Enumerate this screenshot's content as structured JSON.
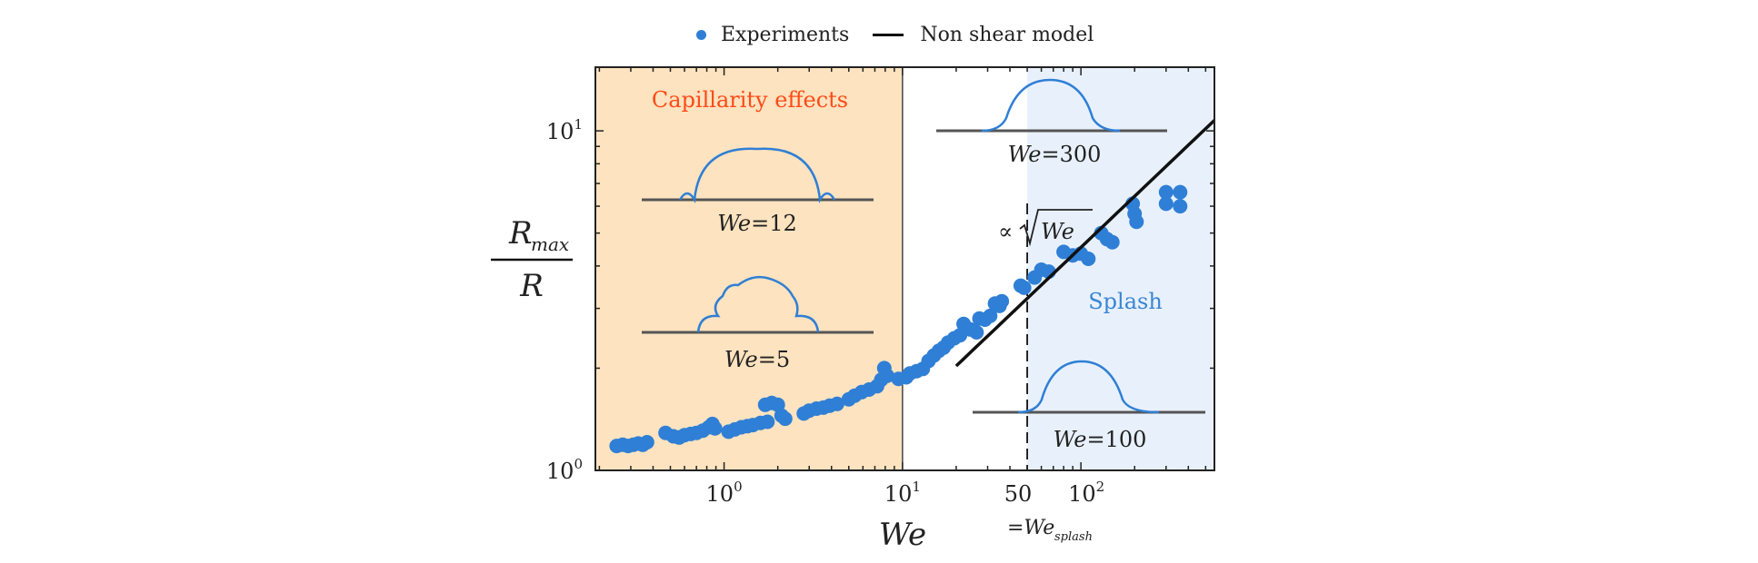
{
  "chart_data": {
    "type": "scatter",
    "title": "",
    "xlabel": "We",
    "ylabel": {
      "numerator": "R",
      "numerator_sub": "max",
      "denominator": "R"
    },
    "xscale": "log",
    "yscale": "log",
    "xlim": [
      0.19,
      560
    ],
    "ylim": [
      1.0,
      15.4
    ],
    "grid": false,
    "legend": {
      "placement": "top-center-outside",
      "entries": [
        {
          "label": "Experiments",
          "marker": "dot",
          "color": "#2f7fd6"
        },
        {
          "label": "Non shear model",
          "marker": "line",
          "color": "#111111"
        }
      ]
    },
    "x_ticks": [
      {
        "value": 1,
        "base": "10",
        "exp": "0"
      },
      {
        "value": 10,
        "base": "10",
        "exp": "1"
      },
      {
        "value": 50,
        "base": "50",
        "exp": ""
      },
      {
        "value": 100,
        "base": "10",
        "exp": "2"
      }
    ],
    "y_ticks": [
      {
        "value": 1,
        "base": "10",
        "exp": "0"
      },
      {
        "value": 10,
        "base": "10",
        "exp": "1"
      }
    ],
    "splash_threshold_label": {
      "text": "=We",
      "sub": "splash"
    },
    "regions": [
      {
        "name": "Capillarity effects",
        "from": 0.19,
        "to": 10,
        "fill": "#fde3bf",
        "label_color": "#ff4a1a"
      },
      {
        "name": "Splash",
        "from": 50,
        "to": 560,
        "fill": "#e8f1fb",
        "label_color": "#3a86d4"
      }
    ],
    "annotations": {
      "proportional": {
        "prefix": "∝",
        "radicand": "We"
      },
      "drop_shapes": [
        {
          "label_var": "We",
          "label_value": "=12",
          "kind": "capillary-ridges"
        },
        {
          "label_var": "We",
          "label_value": "=5",
          "kind": "capillary-ripples"
        },
        {
          "label_var": "We",
          "label_value": "=300",
          "kind": "smooth"
        },
        {
          "label_var": "We",
          "label_value": "=100",
          "kind": "smooth"
        }
      ]
    },
    "series": [
      {
        "name": "Experiments",
        "type": "scatter",
        "color": "#2f7fd6",
        "points": [
          [
            0.25,
            1.18
          ],
          [
            0.27,
            1.19
          ],
          [
            0.29,
            1.18
          ],
          [
            0.31,
            1.19
          ],
          [
            0.33,
            1.2
          ],
          [
            0.35,
            1.19
          ],
          [
            0.37,
            1.21
          ],
          [
            0.47,
            1.29
          ],
          [
            0.52,
            1.26
          ],
          [
            0.56,
            1.25
          ],
          [
            0.6,
            1.27
          ],
          [
            0.65,
            1.28
          ],
          [
            0.7,
            1.29
          ],
          [
            0.76,
            1.31
          ],
          [
            0.82,
            1.34
          ],
          [
            0.86,
            1.37
          ],
          [
            0.89,
            1.33
          ],
          [
            1.06,
            1.3
          ],
          [
            1.15,
            1.32
          ],
          [
            1.25,
            1.34
          ],
          [
            1.35,
            1.35
          ],
          [
            1.45,
            1.36
          ],
          [
            1.6,
            1.38
          ],
          [
            1.75,
            1.39
          ],
          [
            1.7,
            1.56
          ],
          [
            1.85,
            1.58
          ],
          [
            2.0,
            1.56
          ],
          [
            2.1,
            1.45
          ],
          [
            2.2,
            1.42
          ],
          [
            2.8,
            1.47
          ],
          [
            3.0,
            1.5
          ],
          [
            3.3,
            1.52
          ],
          [
            3.6,
            1.53
          ],
          [
            3.9,
            1.55
          ],
          [
            4.3,
            1.57
          ],
          [
            5.0,
            1.62
          ],
          [
            5.4,
            1.66
          ],
          [
            5.9,
            1.7
          ],
          [
            6.5,
            1.73
          ],
          [
            7.2,
            1.77
          ],
          [
            7.6,
            1.85
          ],
          [
            7.9,
            2.0
          ],
          [
            8.2,
            1.9
          ],
          [
            9.5,
            1.86
          ],
          [
            10.5,
            1.88
          ],
          [
            11,
            1.93
          ],
          [
            12,
            1.96
          ],
          [
            13,
            1.99
          ],
          [
            14,
            2.1
          ],
          [
            15,
            2.18
          ],
          [
            16,
            2.25
          ],
          [
            17,
            2.3
          ],
          [
            18,
            2.38
          ],
          [
            19.5,
            2.45
          ],
          [
            21,
            2.5
          ],
          [
            22,
            2.7
          ],
          [
            24,
            2.6
          ],
          [
            26,
            2.55
          ],
          [
            27,
            2.8
          ],
          [
            29,
            2.78
          ],
          [
            31,
            2.85
          ],
          [
            33,
            3.1
          ],
          [
            35,
            3.05
          ],
          [
            36,
            3.15
          ],
          [
            46,
            3.5
          ],
          [
            48,
            3.45
          ],
          [
            55,
            3.7
          ],
          [
            60,
            3.9
          ],
          [
            66,
            3.85
          ],
          [
            80,
            4.4
          ],
          [
            90,
            4.3
          ],
          [
            100,
            4.35
          ],
          [
            110,
            4.2
          ],
          [
            130,
            5.0
          ],
          [
            140,
            4.8
          ],
          [
            150,
            4.7
          ],
          [
            195,
            6.1
          ],
          [
            200,
            5.7
          ],
          [
            205,
            5.4
          ],
          [
            300,
            6.6
          ],
          [
            300,
            6.1
          ],
          [
            360,
            6.6
          ],
          [
            360,
            6.0
          ]
        ]
      },
      {
        "name": "Non shear model",
        "type": "line",
        "color": "#111111",
        "formula": "R_max/R ∝ sqrt(We)",
        "x_range": [
          20,
          560
        ],
        "points": [
          [
            20,
            2.03
          ],
          [
            50,
            3.4
          ],
          [
            100,
            4.55
          ],
          [
            200,
            6.4
          ],
          [
            300,
            7.9
          ],
          [
            560,
            10.7
          ]
        ]
      }
    ]
  }
}
